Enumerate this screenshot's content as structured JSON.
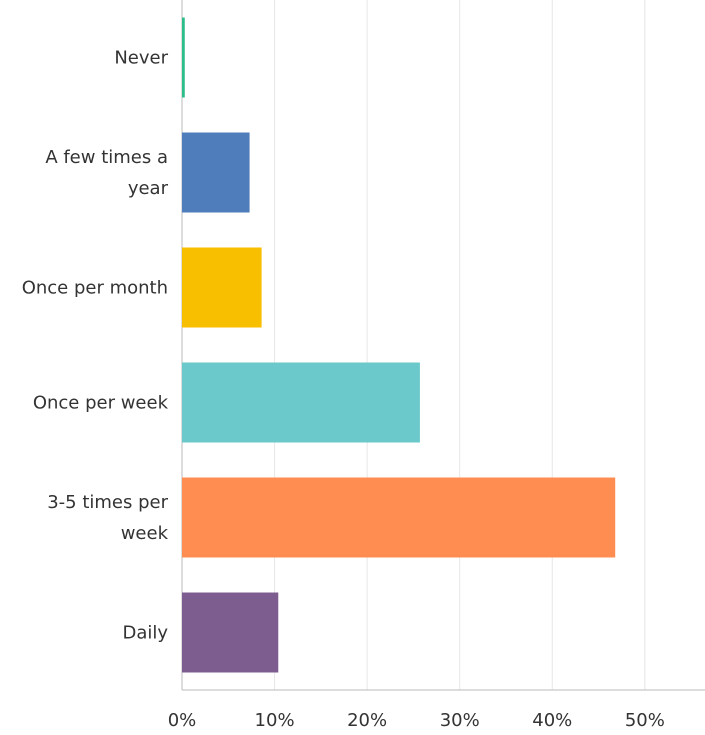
{
  "chart_data": {
    "type": "barh",
    "categories": [
      "Never",
      "A few times a year",
      "Once per month",
      "Once per week",
      "3-5 times per week",
      "Daily"
    ],
    "values": [
      0.3,
      7.3,
      8.6,
      25.7,
      46.8,
      10.4
    ],
    "colors": [
      "#2dbd8a",
      "#4f7cba",
      "#f8be00",
      "#6bc8cb",
      "#ff8c50",
      "#7d5c8f"
    ],
    "xlim": [
      0,
      56.5
    ],
    "xticks": [
      {
        "value": 0,
        "label": "0%"
      },
      {
        "value": 10,
        "label": "10%"
      },
      {
        "value": 20,
        "label": "20%"
      },
      {
        "value": 30,
        "label": "30%"
      },
      {
        "value": 40,
        "label": "40%"
      },
      {
        "value": 50,
        "label": "50%"
      }
    ],
    "grid": true
  }
}
